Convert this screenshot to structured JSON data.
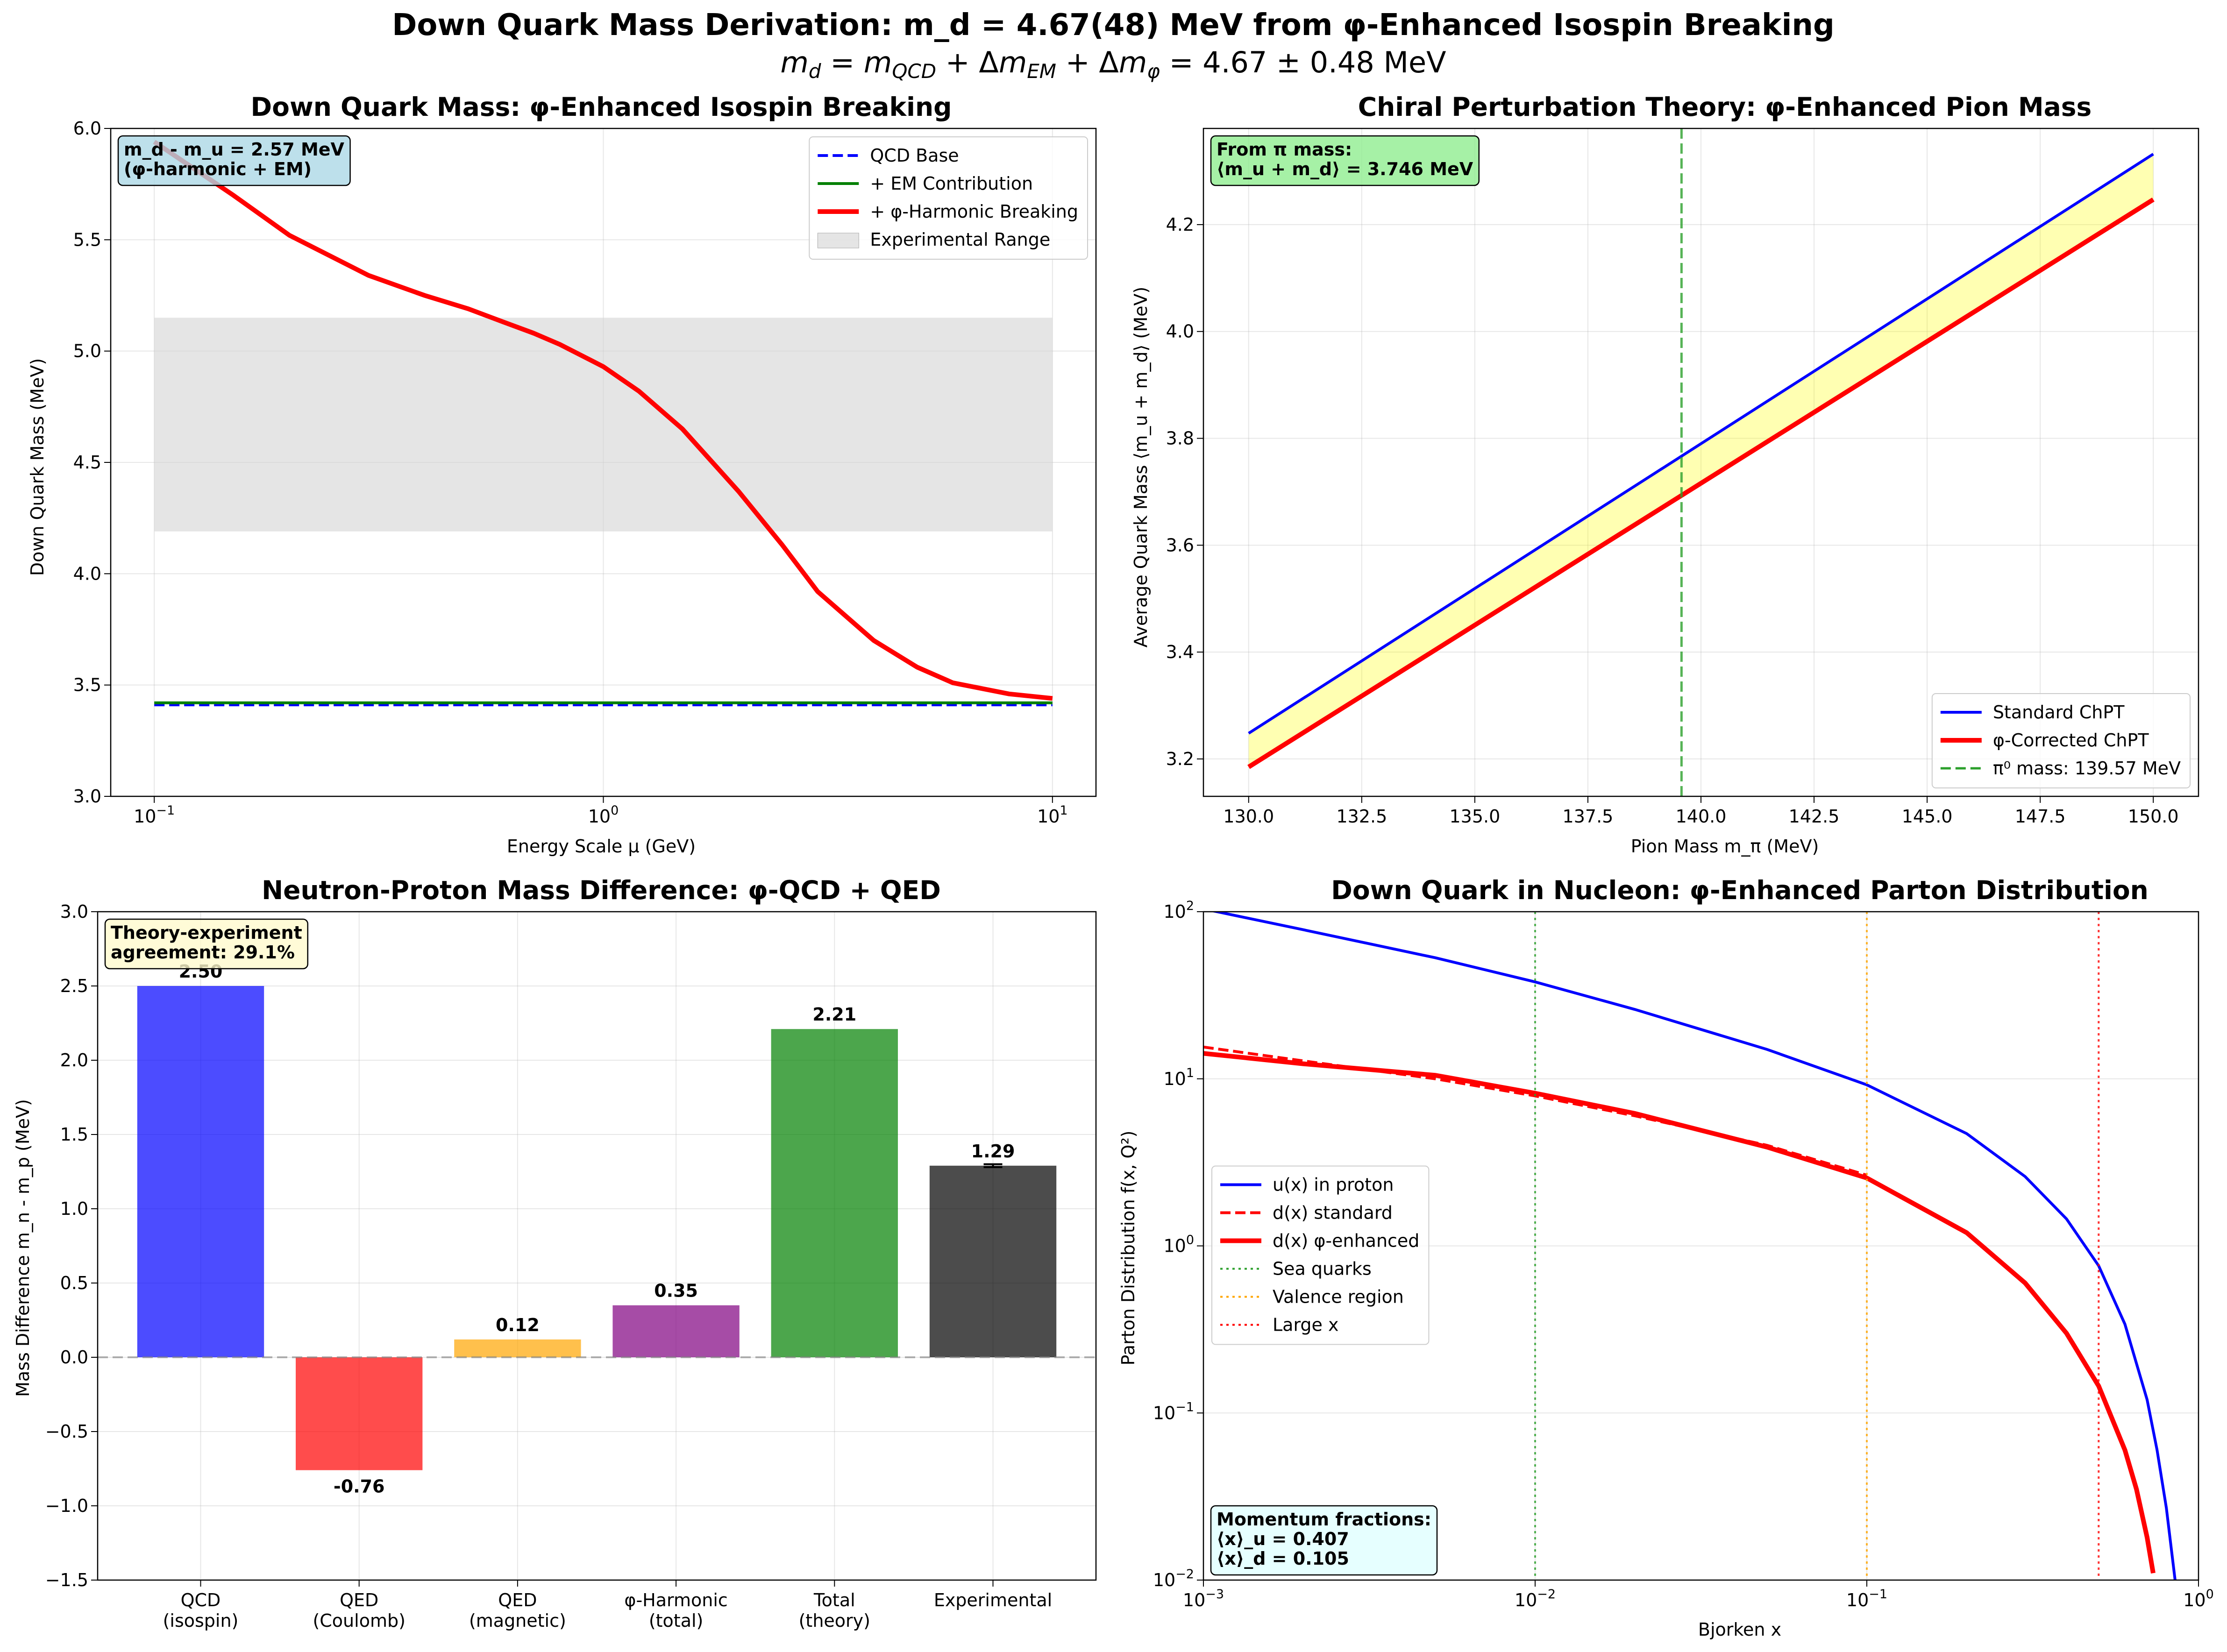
{
  "figure": {
    "title": "Down Quark Mass Derivation: m_d = 4.67(48) MeV from φ-Enhanced Isospin Breaking",
    "subtitle": "m_d = m_QCD + Δm_EM + Δm_φ = 4.67 ± 0.48 MeV"
  },
  "chart_data": [
    {
      "id": "p1",
      "type": "line",
      "title": "Down Quark Mass: φ-Enhanced Isospin Breaking",
      "xlabel": "Energy Scale μ (GeV)",
      "ylabel": "Down Quark Mass (MeV)",
      "xscale": "log",
      "xlim": [
        0.08,
        12.5
      ],
      "ylim": [
        3.0,
        6.0
      ],
      "xticks": [
        0.1,
        1,
        10
      ],
      "xticklabels": [
        [
          "10",
          "−1"
        ],
        [
          "10",
          "0"
        ],
        [
          "10",
          "1"
        ]
      ],
      "yticks": [
        3.0,
        3.5,
        4.0,
        4.5,
        5.0,
        5.5,
        6.0
      ],
      "yticklabels": [
        "3.0",
        "3.5",
        "4.0",
        "4.5",
        "5.0",
        "5.5",
        "6.0"
      ],
      "grid": true,
      "legend_position": "top-right",
      "band": {
        "name": "Experimental Range",
        "x": [
          0.1,
          10
        ],
        "y": [
          4.19,
          5.15
        ],
        "color": "#d3d3d3"
      },
      "series": [
        {
          "name": "QCD Base",
          "color": "#0000ff",
          "style": "dashed",
          "x": [
            0.1,
            10
          ],
          "y": [
            3.41,
            3.41
          ]
        },
        {
          "name": "+ EM Contribution",
          "color": "#008000",
          "style": "solid",
          "x": [
            0.1,
            10
          ],
          "y": [
            3.42,
            3.42
          ]
        },
        {
          "name": "+ φ-Harmonic Breaking",
          "color": "#ff0000",
          "style": "solid",
          "x": [
            0.1,
            0.15,
            0.2,
            0.3,
            0.4,
            0.5,
            0.6,
            0.7,
            0.8,
            1.0,
            1.2,
            1.5,
            2.0,
            2.5,
            3.0,
            4.0,
            5.0,
            6.0,
            8.0,
            10.0
          ],
          "y": [
            5.94,
            5.7,
            5.52,
            5.34,
            5.25,
            5.19,
            5.13,
            5.08,
            5.03,
            4.93,
            4.82,
            4.65,
            4.37,
            4.13,
            3.92,
            3.7,
            3.58,
            3.51,
            3.46,
            3.44
          ]
        }
      ],
      "annotation": [
        "m_d - m_u = 2.57 MeV",
        "(φ-harmonic + EM)"
      ],
      "annotation_color": "#add8e6"
    },
    {
      "id": "p2",
      "type": "line",
      "title": "Chiral Perturbation Theory: φ-Enhanced Pion Mass",
      "xlabel": "Pion Mass m_π (MeV)",
      "ylabel": "Average Quark Mass ⟨m_u + m_d⟩ (MeV)",
      "xlim": [
        129.0,
        151.0
      ],
      "ylim": [
        3.13,
        4.38
      ],
      "xticks": [
        130.0,
        132.5,
        135.0,
        137.5,
        140.0,
        142.5,
        145.0,
        147.5,
        150.0
      ],
      "xticklabels": [
        "130.0",
        "132.5",
        "135.0",
        "137.5",
        "140.0",
        "142.5",
        "145.0",
        "147.5",
        "150.0"
      ],
      "yticks": [
        3.2,
        3.4,
        3.6,
        3.8,
        4.0,
        4.2
      ],
      "yticklabels": [
        "3.2",
        "3.4",
        "3.6",
        "3.8",
        "4.0",
        "4.2"
      ],
      "grid": true,
      "legend_position": "bottom-right",
      "fill_color": "#ffff00",
      "series": [
        {
          "name": "Standard ChPT",
          "color": "#0000ff",
          "style": "solid",
          "x": [
            130,
            150
          ],
          "y": [
            3.248,
            4.332
          ]
        },
        {
          "name": "φ-Corrected ChPT",
          "color": "#ff0000",
          "style": "solid",
          "x": [
            130,
            150
          ],
          "y": [
            3.185,
            4.247
          ]
        }
      ],
      "vline": {
        "name": "π⁰ mass: 139.57 MeV",
        "x": 139.57,
        "color": "#2ca02c"
      },
      "annotation": [
        "From π mass:",
        "⟨m_u + m_d⟩ = 3.746 MeV"
      ],
      "annotation_color": "#90ee90"
    },
    {
      "id": "p3",
      "type": "bar",
      "title": "Neutron-Proton Mass Difference: φ-QCD + QED",
      "ylabel": "Mass Difference m_n - m_p (MeV)",
      "ylim": [
        -1.5,
        3.0
      ],
      "yticks": [
        -1.5,
        -1.0,
        -0.5,
        0.0,
        0.5,
        1.0,
        1.5,
        2.0,
        2.5,
        3.0
      ],
      "yticklabels": [
        "−1.5",
        "−1.0",
        "−0.5",
        "0.0",
        "0.5",
        "1.0",
        "1.5",
        "2.0",
        "2.5",
        "3.0"
      ],
      "grid": true,
      "categories": [
        [
          "QCD",
          "(isospin)"
        ],
        [
          "QED",
          "(Coulomb)"
        ],
        [
          "QED",
          "(magnetic)"
        ],
        [
          "φ-Harmonic",
          "(total)"
        ],
        [
          "Total",
          "(theory)"
        ],
        [
          "Experimental"
        ]
      ],
      "values": [
        2.5,
        -0.76,
        0.12,
        0.35,
        2.21,
        1.29
      ],
      "value_labels": [
        "2.50",
        "-0.76",
        "0.12",
        "0.35",
        "2.21",
        "1.29"
      ],
      "colors": [
        "#0000ff",
        "#ff0000",
        "#ffa500",
        "#800080",
        "#008000",
        "#000000"
      ],
      "error_bar": {
        "index": 5,
        "error": 0.01
      },
      "annotation": [
        "Theory-experiment",
        "agreement: 29.1%"
      ],
      "annotation_color": "#fffacd"
    },
    {
      "id": "p4",
      "type": "line",
      "title": "Down Quark in Nucleon: φ-Enhanced Parton Distribution",
      "xlabel": "Bjorken x",
      "ylabel": "Parton Distribution f(x, Q²)",
      "xscale": "log",
      "yscale": "log",
      "xlim": [
        0.001,
        1.0
      ],
      "ylim": [
        0.01,
        100
      ],
      "xticks": [
        0.001,
        0.01,
        0.1,
        1
      ],
      "xticklabels": [
        [
          "10",
          "−3"
        ],
        [
          "10",
          "−2"
        ],
        [
          "10",
          "−1"
        ],
        [
          "10",
          "0"
        ]
      ],
      "yticks": [
        0.01,
        0.1,
        1,
        10,
        100
      ],
      "yticklabels": [
        [
          "10",
          "−2"
        ],
        [
          "10",
          "−1"
        ],
        [
          "10",
          "0"
        ],
        [
          "10",
          "1"
        ],
        [
          "10",
          "2"
        ]
      ],
      "grid": true,
      "legend_position": "center-left",
      "series": [
        {
          "name": "u(x) in proton",
          "color": "#0000ff",
          "style": "solid",
          "x": [
            0.001,
            0.002,
            0.005,
            0.01,
            0.02,
            0.05,
            0.1,
            0.2,
            0.3,
            0.4,
            0.5,
            0.6,
            0.7,
            0.75,
            0.8,
            0.85
          ],
          "y": [
            104,
            78,
            53,
            38,
            26,
            15,
            9.2,
            4.7,
            2.6,
            1.45,
            0.76,
            0.34,
            0.12,
            0.06,
            0.027,
            0.01
          ]
        },
        {
          "name": "d(x) standard",
          "color": "#ff0000",
          "style": "dashed",
          "x": [
            0.001,
            0.002,
            0.005,
            0.01,
            0.02,
            0.05,
            0.1
          ],
          "y": [
            15.5,
            12.8,
            10.0,
            7.9,
            6.0,
            4.0,
            2.65
          ]
        },
        {
          "name": "d(x) φ-enhanced",
          "color": "#ff0000",
          "style": "solid",
          "x": [
            0.001,
            0.002,
            0.005,
            0.01,
            0.02,
            0.05,
            0.1,
            0.2,
            0.3,
            0.4,
            0.5,
            0.6,
            0.65,
            0.7,
            0.73
          ],
          "y": [
            14.2,
            12.3,
            10.5,
            8.2,
            6.2,
            3.9,
            2.55,
            1.2,
            0.6,
            0.3,
            0.145,
            0.06,
            0.035,
            0.018,
            0.011
          ]
        }
      ],
      "vlines": [
        {
          "name": "Sea quarks",
          "x": 0.01,
          "color": "#2ca02c"
        },
        {
          "name": "Valence region",
          "x": 0.1,
          "color": "#ffa500"
        },
        {
          "name": "Large x",
          "x": 0.5,
          "color": "#ff0000"
        }
      ],
      "annotation": [
        "Momentum fractions:",
        "⟨x⟩_u = 0.407",
        "⟨x⟩_d = 0.105"
      ],
      "annotation_color": "#e0ffff"
    }
  ]
}
